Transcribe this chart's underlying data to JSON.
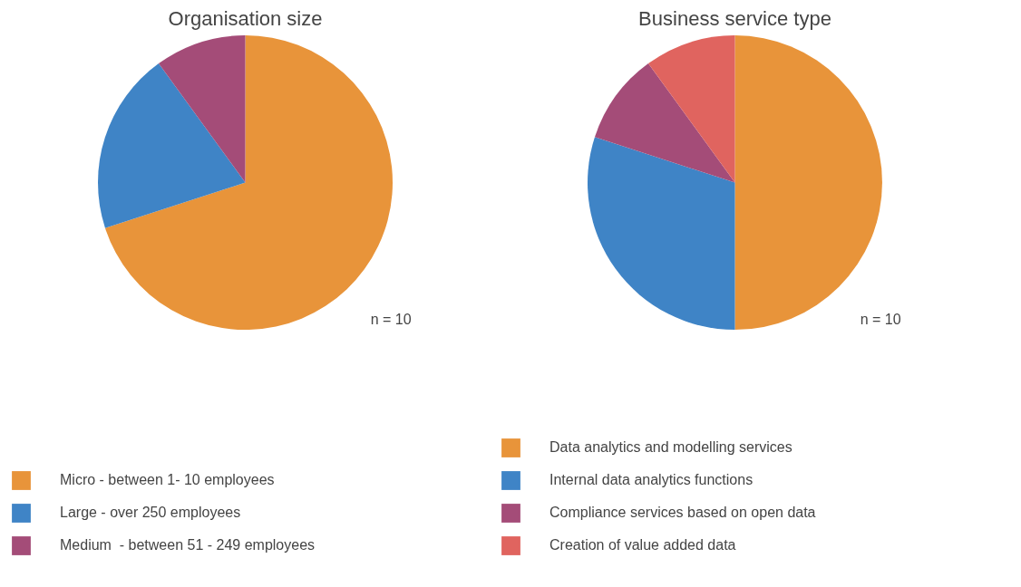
{
  "chart_data": [
    {
      "type": "pie",
      "title": "Organisation size",
      "categories": [
        "Micro - between 1- 10 employees",
        "Large - over 250 employees",
        "Medium  - between 51 - 249 employees"
      ],
      "values": [
        70,
        20,
        10
      ],
      "colors": [
        "#e8943a",
        "#3f84c6",
        "#a44c78"
      ],
      "annotations": [
        "n = 10"
      ],
      "legend": "bottom"
    },
    {
      "type": "pie",
      "title": "Business service type",
      "categories": [
        "Data analytics and modelling services",
        "Internal data analytics functions",
        "Compliance services based on open data",
        "Creation of value added data"
      ],
      "values": [
        50,
        30,
        10,
        10
      ],
      "colors": [
        "#e8943a",
        "#3f84c6",
        "#a44c78",
        "#e0645f"
      ],
      "annotations": [
        "n = 10"
      ],
      "legend": "bottom"
    }
  ]
}
